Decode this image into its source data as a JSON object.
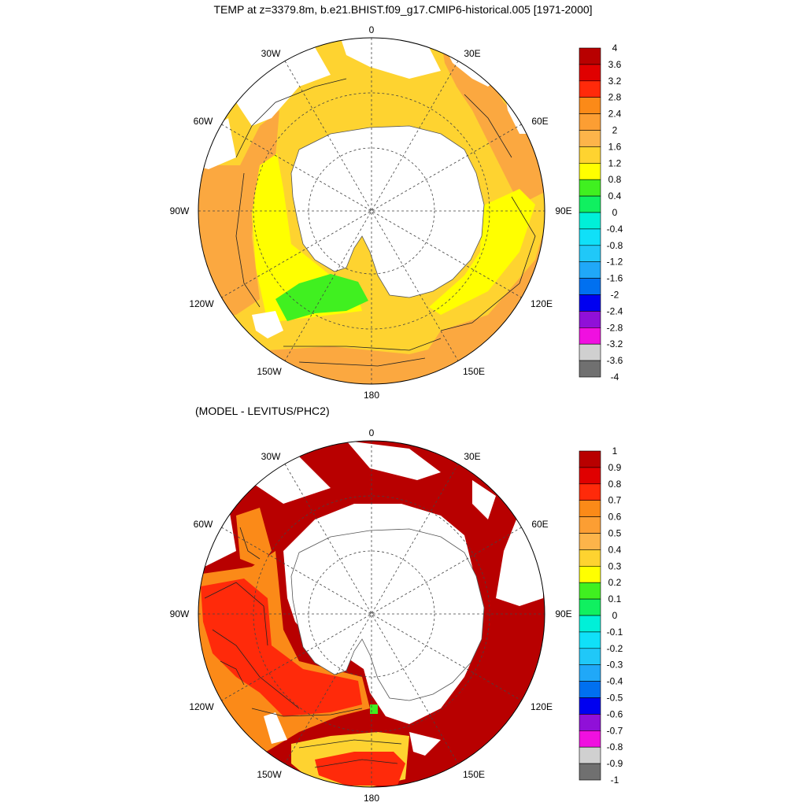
{
  "title": "TEMP at z=3379.8m, b.e21.BHIST.f09_g17.CMIP6-historical.005 [1971-2000]",
  "subtitle": "(MODEL - LEVITUS/PHC2)",
  "longitude_labels": {
    "n0": "0",
    "w30": "30W",
    "e30": "30E",
    "w60": "60W",
    "e60": "60E",
    "w90": "90W",
    "e90": "90E",
    "w120": "120W",
    "e120": "120E",
    "w150": "150W",
    "e150": "150E",
    "s180": "180"
  },
  "colors": {
    "land": "#ffffff",
    "coast": "#555555",
    "top_main": "#fed330",
    "top_warm": "#fba840",
    "top_yellow": "#ffff00",
    "top_green": "#40f020",
    "bottom_main": "#b80000",
    "bottom_red": "#ff2a0a",
    "bottom_orange": "#fb8a18",
    "bottom_yellow": "#fed330"
  },
  "colorbar_top": {
    "labels": [
      "4",
      "3.6",
      "3.2",
      "2.8",
      "2.4",
      "2",
      "1.6",
      "1.2",
      "0.8",
      "0.4",
      "0",
      "-0.4",
      "-0.8",
      "-1.2",
      "-1.6",
      "-2",
      "-2.4",
      "-2.8",
      "-3.2",
      "-3.6",
      "-4"
    ],
    "colors": [
      "#b80000",
      "#e00000",
      "#ff2a0a",
      "#fb8a18",
      "#fc9e33",
      "#fdb44a",
      "#fed330",
      "#ffff00",
      "#40f020",
      "#10f060",
      "#00f0d8",
      "#10e0f8",
      "#20c8f8",
      "#20a8f8",
      "#0070f0",
      "#0000f0",
      "#9010d8",
      "#f010e0",
      "#d0d0d0",
      "#707070"
    ]
  },
  "colorbar_bottom": {
    "labels": [
      "1",
      "0.9",
      "0.8",
      "0.7",
      "0.6",
      "0.5",
      "0.4",
      "0.3",
      "0.2",
      "0.1",
      "0",
      "-0.1",
      "-0.2",
      "-0.3",
      "-0.4",
      "-0.5",
      "-0.6",
      "-0.7",
      "-0.8",
      "-0.9",
      "-1"
    ],
    "colors": [
      "#b80000",
      "#e00000",
      "#ff2a0a",
      "#fb8a18",
      "#fc9e33",
      "#fdb44a",
      "#fed330",
      "#ffff00",
      "#40f020",
      "#10f060",
      "#00f0d8",
      "#10e0f8",
      "#20c8f8",
      "#20a8f8",
      "#0070f0",
      "#0000f0",
      "#9010d8",
      "#f010e0",
      "#d0d0d0",
      "#707070"
    ]
  }
}
